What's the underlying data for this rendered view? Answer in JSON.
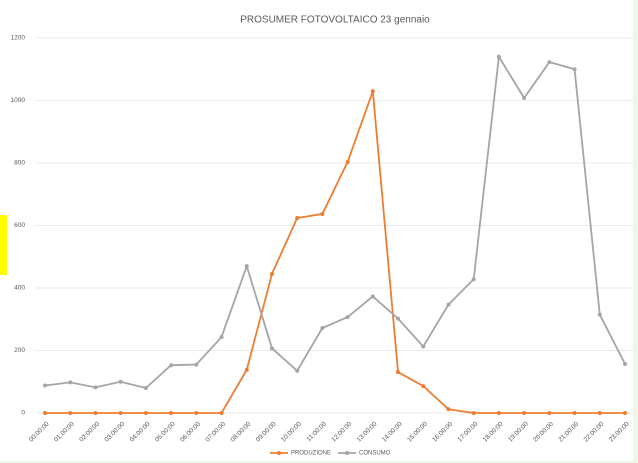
{
  "chart_data": {
    "type": "line",
    "title": "PROSUMER FOTOVOLTAICO 23 gennaio",
    "categories": [
      "00:00:00",
      "01:00:00",
      "02:00:00",
      "03:00:00",
      "04:00:00",
      "05:00:00",
      "06:00:00",
      "07:00:00",
      "08:00:00",
      "09:00:00",
      "10:00:00",
      "11:00:00",
      "12:00:00",
      "13:00:00",
      "14:00:00",
      "15:00:00",
      "16:00:00",
      "17:00:00",
      "18:00:00",
      "19:00:00",
      "20:00:00",
      "21:00:00",
      "22:00:00",
      "23:00:00"
    ],
    "series": [
      {
        "name": "PRODUZIONE",
        "color": "#ED7D31",
        "values": [
          0,
          0,
          0,
          0,
          0,
          0,
          0,
          0,
          138,
          445,
          624,
          637,
          803,
          1030,
          131,
          86,
          12,
          0,
          0,
          0,
          0,
          0,
          0,
          0
        ]
      },
      {
        "name": "CONSUMO",
        "color": "#A5A5A5",
        "values": [
          88,
          98,
          82,
          100,
          80,
          153,
          155,
          243,
          470,
          207,
          135,
          272,
          307,
          373,
          302,
          213,
          347,
          428,
          1140,
          1008,
          1123,
          1100,
          315,
          157
        ]
      }
    ],
    "ylim": [
      0,
      1200
    ],
    "yticks": [
      0,
      200,
      400,
      600,
      800,
      1000,
      1200
    ],
    "grid": true,
    "legend": "bottom"
  }
}
